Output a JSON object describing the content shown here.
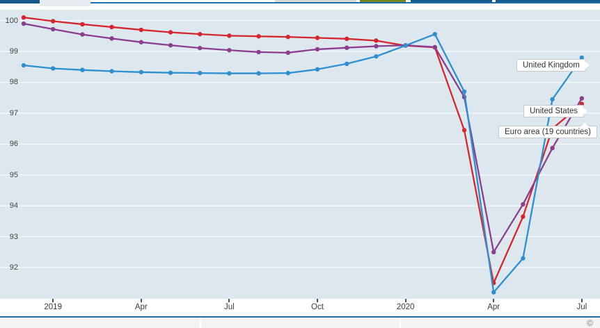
{
  "header": {
    "active_tab_label": "",
    "buttons": [
      "toolbar-button-gray",
      "toolbar-button-green",
      "toolbar-button-blue-1",
      "toolbar-button-blue-2"
    ]
  },
  "axes": {
    "yticks": [
      100,
      99,
      98,
      97,
      96,
      95,
      94,
      93,
      92
    ],
    "xtick_labels": [
      "2019",
      "Apr",
      "Jul",
      "Oct",
      "2020",
      "Apr",
      "Jul"
    ],
    "xtick_month_indices": [
      1,
      4,
      7,
      10,
      13,
      16,
      19
    ]
  },
  "footer": {
    "copyright": "©"
  },
  "chart_data": {
    "type": "line",
    "title": "",
    "xlabel": "",
    "ylabel": "",
    "grid": true,
    "plot_bg": "#dce7ee",
    "gridline_color": "#ffffff",
    "ylim": [
      91.0,
      100.35
    ],
    "yticks": [
      100,
      99,
      98,
      97,
      96,
      95,
      94,
      93,
      92
    ],
    "x": [
      "Dec 2018",
      "Jan 2019",
      "Feb 2019",
      "Mar 2019",
      "Apr 2019",
      "May 2019",
      "Jun 2019",
      "Jul 2019",
      "Aug 2019",
      "Sep 2019",
      "Oct 2019",
      "Nov 2019",
      "Dec 2019",
      "Jan 2020",
      "Feb 2020",
      "Mar 2020",
      "Apr 2020",
      "May 2020",
      "Jun 2020",
      "Jul 2020"
    ],
    "visible_xtick_labels": [
      "2019",
      "Apr",
      "Jul",
      "Oct",
      "2020",
      "Apr",
      "Jul"
    ],
    "legend_position": "end-of-line-callouts",
    "marker": "circle",
    "series": [
      {
        "name": "United Kingdom",
        "color": "#2e8fd0",
        "values": [
          98.55,
          98.45,
          98.4,
          98.36,
          98.33,
          98.31,
          98.3,
          98.29,
          98.29,
          98.3,
          98.42,
          98.6,
          98.84,
          99.19,
          99.56,
          97.7,
          91.2,
          92.3,
          97.45,
          98.8
        ]
      },
      {
        "name": "United States",
        "color": "#8b3d8e",
        "values": [
          99.9,
          99.72,
          99.55,
          99.42,
          99.3,
          99.2,
          99.11,
          99.04,
          98.98,
          98.96,
          99.07,
          99.12,
          99.17,
          99.2,
          99.14,
          97.52,
          92.5,
          94.05,
          95.87,
          97.48
        ]
      },
      {
        "name": "Euro area (19 countries)",
        "color": "#d5262e",
        "values": [
          100.1,
          99.98,
          99.88,
          99.79,
          99.7,
          99.62,
          99.56,
          99.51,
          99.49,
          99.47,
          99.44,
          99.41,
          99.35,
          99.19,
          99.13,
          96.45,
          91.5,
          93.65,
          96.5,
          97.3
        ]
      }
    ]
  }
}
